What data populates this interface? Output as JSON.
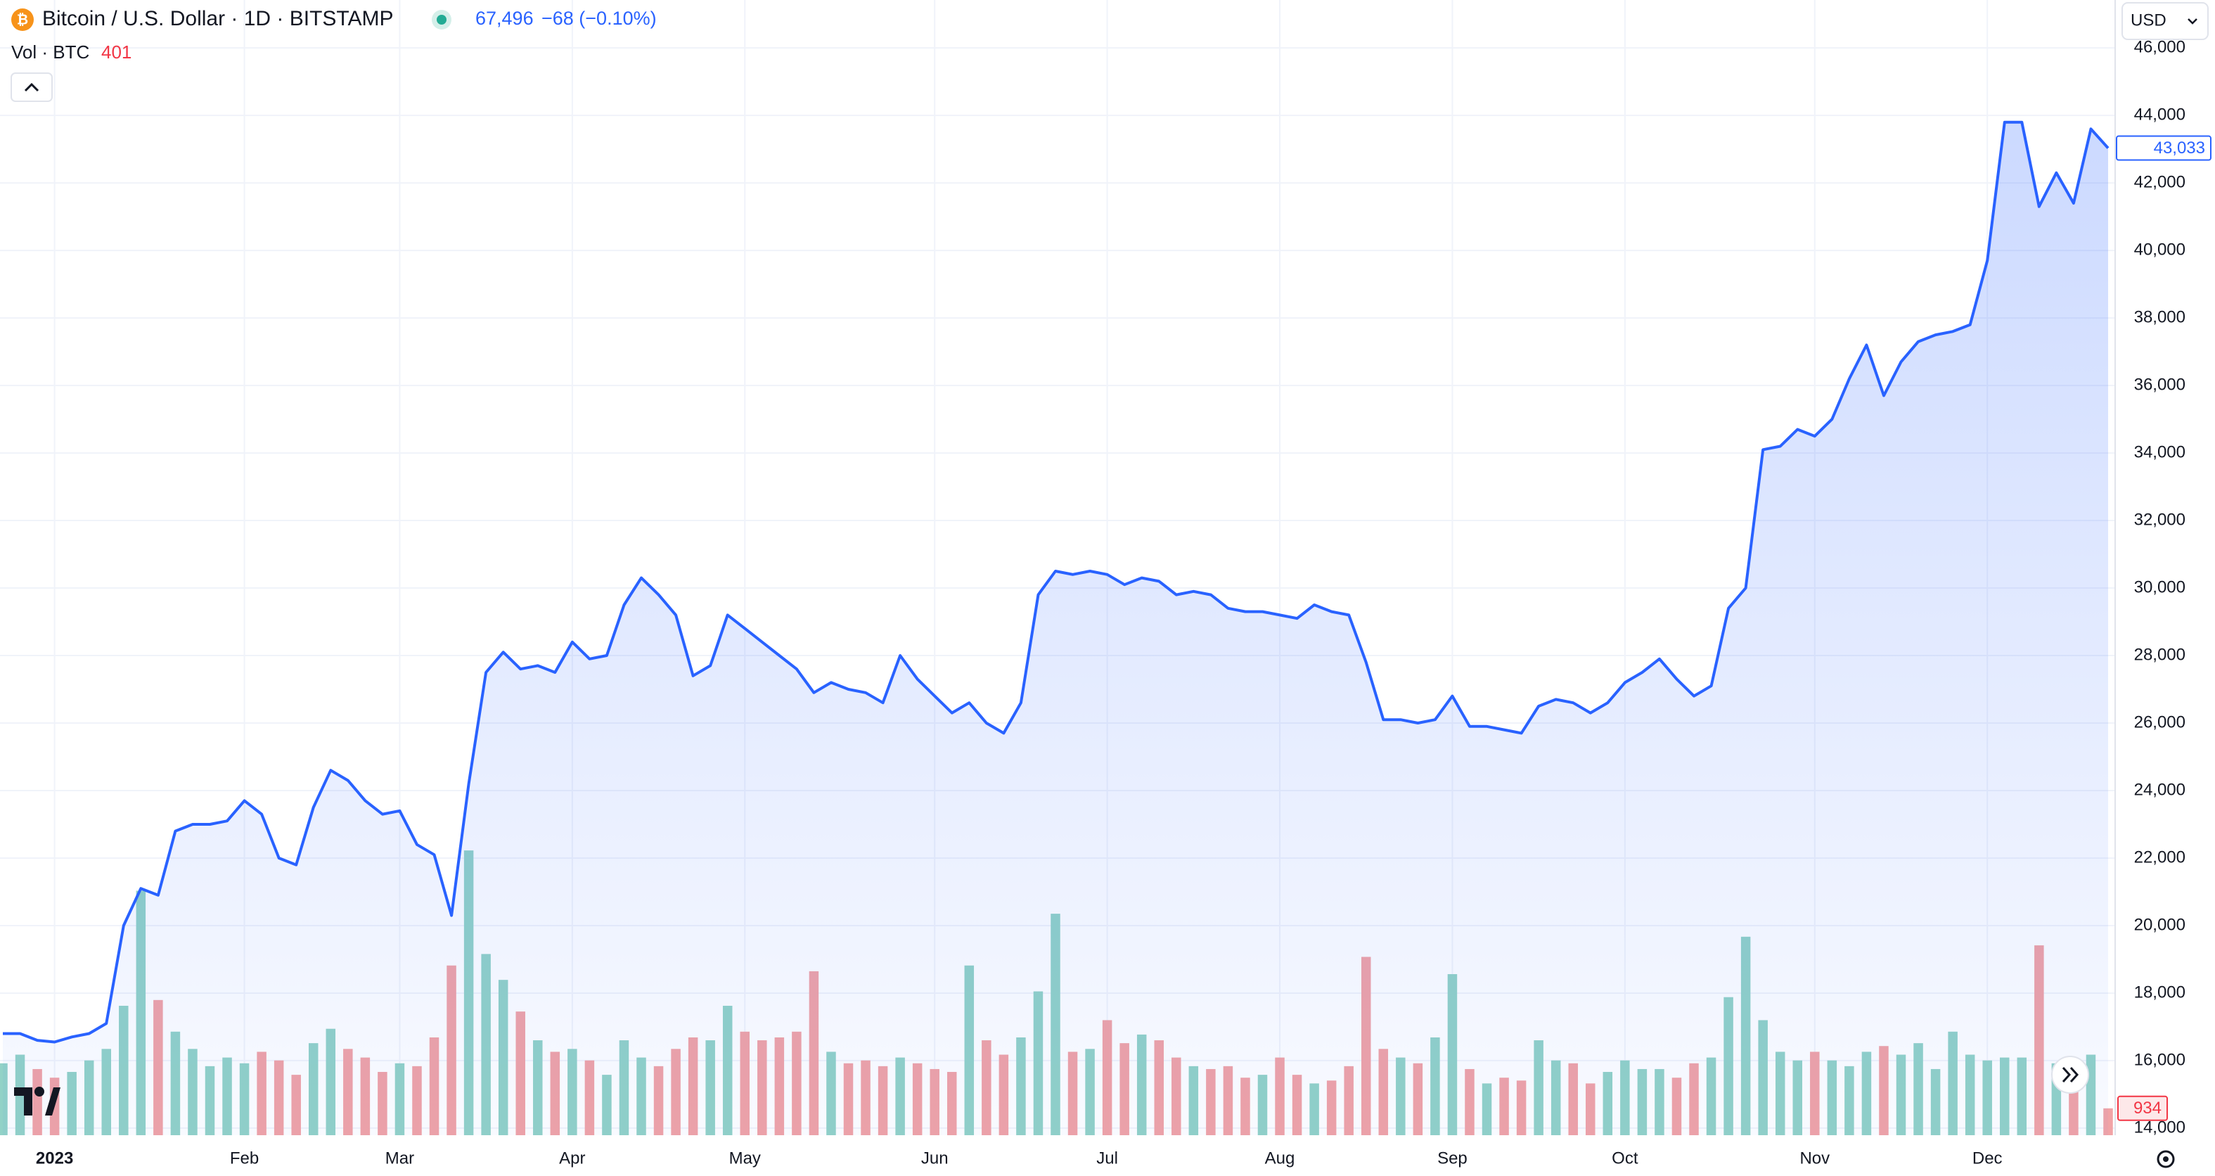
{
  "chart_data": {
    "type": "line",
    "title": "Bitcoin / U.S. Dollar · 1D · BITSTAMP",
    "price": "67,496",
    "change": "−68 (−0.10%)",
    "volume_title": "Vol · BTC",
    "volume_value": 401,
    "currency": "USD",
    "categories": [
      null,
      null,
      null,
      "2023",
      null,
      null,
      null,
      null,
      null,
      null,
      null,
      null,
      null,
      null,
      "Feb",
      null,
      null,
      null,
      null,
      null,
      null,
      null,
      null,
      "Mar",
      null,
      null,
      null,
      null,
      null,
      null,
      null,
      null,
      null,
      "Apr",
      null,
      null,
      null,
      null,
      null,
      null,
      null,
      null,
      null,
      "May",
      null,
      null,
      null,
      null,
      null,
      null,
      null,
      null,
      null,
      null,
      "Jun",
      null,
      null,
      null,
      null,
      null,
      null,
      null,
      null,
      null,
      "Jul",
      null,
      null,
      null,
      null,
      null,
      null,
      null,
      null,
      null,
      "Aug",
      null,
      null,
      null,
      null,
      null,
      null,
      null,
      null,
      null,
      "Sep",
      null,
      null,
      null,
      null,
      null,
      null,
      null,
      null,
      null,
      "Oct",
      null,
      null,
      null,
      null,
      null,
      null,
      null,
      null,
      null,
      null,
      "Nov",
      null,
      null,
      null,
      null,
      null,
      null,
      null,
      null,
      null,
      "Dec",
      null,
      null,
      null,
      null,
      null,
      null,
      null
    ],
    "series": [
      {
        "name": "Price",
        "color": "#2962ff",
        "last_label": "43,033",
        "values": [
          16800,
          16800,
          16600,
          16550,
          16700,
          16800,
          17100,
          20000,
          21100,
          20900,
          22800,
          23000,
          23000,
          23100,
          23700,
          23300,
          22000,
          21800,
          23500,
          24600,
          24300,
          23700,
          23300,
          23400,
          22400,
          22100,
          20300,
          24200,
          27500,
          28100,
          27600,
          27700,
          27500,
          28400,
          27900,
          28000,
          29500,
          30300,
          29800,
          29200,
          27400,
          27700,
          29200,
          28800,
          28400,
          28000,
          27600,
          26900,
          27200,
          27000,
          26900,
          26600,
          28000,
          27300,
          26800,
          26300,
          26600,
          26000,
          25700,
          26600,
          29800,
          30500,
          30400,
          30500,
          30400,
          30100,
          30300,
          30200,
          29800,
          29900,
          29800,
          29400,
          29300,
          29300,
          29200,
          29100,
          29500,
          29300,
          29200,
          27800,
          26100,
          26100,
          26000,
          26100,
          26800,
          25900,
          25900,
          25800,
          25700,
          26500,
          26700,
          26600,
          26300,
          26600,
          27200,
          27500,
          27900,
          27300,
          26800,
          27100,
          29400,
          30000,
          34100,
          34200,
          34700,
          34500,
          35000,
          36200,
          37200,
          35700,
          36700,
          37300,
          37500,
          37600,
          37800,
          39700,
          43800,
          43800,
          41300,
          42300,
          41400,
          43600,
          43033
        ]
      },
      {
        "name": "Vol",
        "axis": "y2",
        "color_up": "#92d2c7",
        "color_down": "#f1a3a6",
        "values": [
          2500,
          2800,
          2300,
          2000,
          2200,
          2600,
          3000,
          4500,
          8500,
          4700,
          3600,
          3000,
          2400,
          2700,
          2500,
          2900,
          2600,
          2100,
          3200,
          3700,
          3000,
          2700,
          2200,
          2500,
          2400,
          3400,
          5900,
          9900,
          6300,
          5400,
          4300,
          3300,
          2900,
          3000,
          2600,
          2100,
          3300,
          2700,
          2400,
          3000,
          3400,
          3300,
          4500,
          3600,
          3300,
          3400,
          3600,
          5700,
          2900,
          2500,
          2600,
          2400,
          2700,
          2500,
          2300,
          2200,
          5900,
          3300,
          2800,
          3400,
          5000,
          7700,
          2900,
          3000,
          4000,
          3200,
          3500,
          3300,
          2700,
          2400,
          2300,
          2400,
          2000,
          2100,
          2700,
          2100,
          1800,
          1900,
          2400,
          6200,
          3000,
          2700,
          2500,
          3400,
          5600,
          2300,
          1800,
          2000,
          1900,
          3300,
          2600,
          2500,
          1800,
          2200,
          2600,
          2300,
          2300,
          2000,
          2500,
          2700,
          4800,
          6900,
          4000,
          2900,
          2600,
          2900,
          2600,
          2400,
          2900,
          3100,
          2800,
          3200,
          2300,
          3600,
          2800,
          2600,
          2700,
          2700,
          6600,
          2500,
          2000,
          2800,
          934
        ]
      }
    ],
    "ylim": [
      13790,
      46170
    ],
    "yticks": [
      {
        "value": 14000,
        "label": "14,000"
      },
      {
        "value": 16000,
        "label": "16,000"
      },
      {
        "value": 18000,
        "label": "18,000"
      },
      {
        "value": 20000,
        "label": "20,000"
      },
      {
        "value": 22000,
        "label": "22,000"
      },
      {
        "value": 24000,
        "label": "24,000"
      },
      {
        "value": 26000,
        "label": "26,000"
      },
      {
        "value": 28000,
        "label": "28,000"
      },
      {
        "value": 30000,
        "label": "30,000"
      },
      {
        "value": 32000,
        "label": "32,000"
      },
      {
        "value": 34000,
        "label": "34,000"
      },
      {
        "value": 36000,
        "label": "36,000"
      },
      {
        "value": 38000,
        "label": "38,000"
      },
      {
        "value": 40000,
        "label": "40,000"
      },
      {
        "value": 42000,
        "label": "42,000"
      },
      {
        "value": 44000,
        "label": "44,000"
      },
      {
        "value": 46000,
        "label": "46,000"
      }
    ],
    "y2lim": [
      0,
      38000
    ],
    "grid": true
  }
}
